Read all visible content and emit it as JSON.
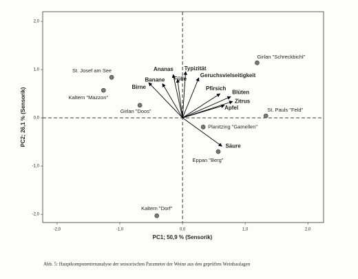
{
  "chart_data": {
    "type": "biplot",
    "xlabel": "PC1; 50,9 % (Sensorik)",
    "ylabel": "PC2; 26,1 % (Sensorik)",
    "caption": "Abb. 5: Hauptkomponentenanalyse der sensorischen Parameter der Weine aus den geprüften Weinbaulagen",
    "xlim": [
      -2.23,
      2.25
    ],
    "ylim": [
      -2.17,
      2.2
    ],
    "xticks": [
      {
        "value": -2,
        "label": "-2,0"
      },
      {
        "value": -1,
        "label": "-1,0"
      },
      {
        "value": 0,
        "label": "0,0"
      },
      {
        "value": 1,
        "label": "1,0"
      },
      {
        "value": 2,
        "label": "2,0"
      }
    ],
    "yticks": [
      {
        "value": -2,
        "label": "-2,0"
      },
      {
        "value": -1,
        "label": "-1,0"
      },
      {
        "value": 0,
        "label": "0,0"
      },
      {
        "value": 1,
        "label": "1,0"
      },
      {
        "value": 2,
        "label": "2,0"
      }
    ],
    "points": {
      "color": "#777777",
      "labels": [
        "Girlan \"Schreckbichl\"",
        "St. Josef am See",
        "Kaltern \"Mazzon\"",
        "Girlan \"Doos\"",
        "St. Pauls \"Feld\"",
        "Planitzing \"Gamellen\"",
        "Eppan \"Berg\"",
        "Kaltern \"Dorf\""
      ],
      "x": [
        1.19,
        -1.13,
        -1.26,
        -0.68,
        1.33,
        0.33,
        0.57,
        -0.41
      ],
      "y": [
        1.14,
        0.84,
        0.57,
        0.26,
        0.04,
        -0.19,
        -0.7,
        -2.03
      ]
    },
    "loadings": {
      "color": "#000000",
      "labels": [
        "Ananas",
        "Banane",
        "Birne",
        "Fülle",
        "Typizität",
        "Geruchsvielseitigkeit",
        "Pfirsich",
        "Blüten",
        "Zitrus",
        "Apfel",
        "Säure"
      ],
      "x": [
        -0.15,
        -0.32,
        -0.54,
        -0.08,
        0.05,
        0.26,
        0.6,
        0.77,
        0.8,
        0.67,
        0.63
      ],
      "y": [
        0.9,
        0.71,
        0.73,
        0.8,
        0.96,
        0.83,
        0.5,
        0.44,
        0.34,
        0.26,
        -0.59
      ]
    }
  }
}
